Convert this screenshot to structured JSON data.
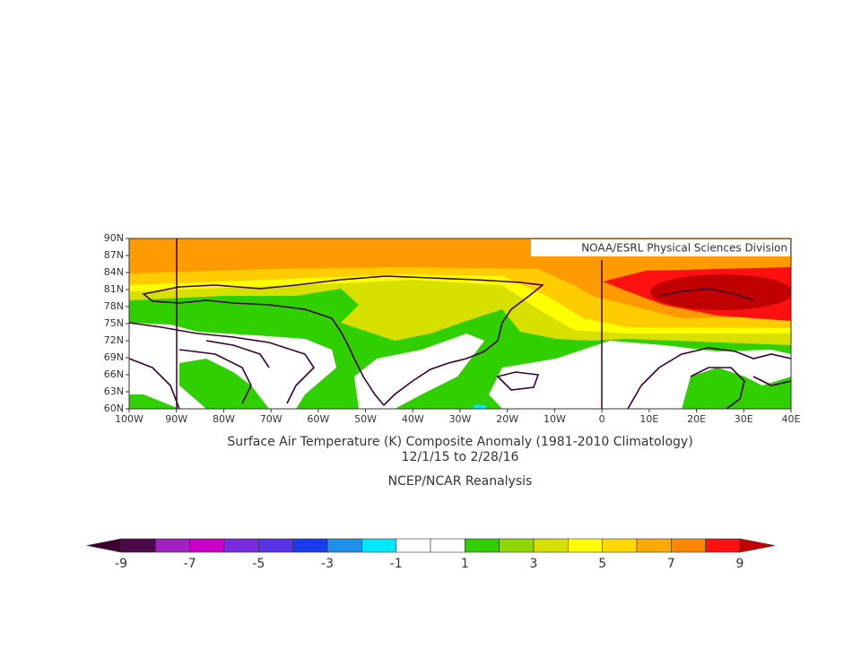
{
  "credit": "NOAA/ESRL Physical Sciences Division",
  "title": "Surface Air Temperature (K) Composite Anomaly (1981-2010 Climatology)",
  "dates": "12/1/15  to 2/28/16",
  "source": "NCEP/NCAR Reanalysis",
  "lat_labels": [
    "90N",
    "87N",
    "84N",
    "81N",
    "78N",
    "75N",
    "72N",
    "69N",
    "66N",
    "63N",
    "60N"
  ],
  "lon_labels": [
    "100W",
    "90W",
    "80W",
    "70W",
    "60W",
    "50W",
    "40W",
    "30W",
    "20W",
    "10W",
    "0",
    "10E",
    "20E",
    "30E",
    "40E"
  ],
  "colorbar": {
    "labels": [
      "-9",
      "-7",
      "-5",
      "-3",
      "-1",
      "1",
      "3",
      "5",
      "7",
      "9"
    ],
    "colors": [
      "#4a0a4a",
      "#a020c0",
      "#c800c8",
      "#7a2be0",
      "#5a32e8",
      "#1a3cf0",
      "#1e90e8",
      "#00e8ff",
      "#ffffff",
      "#ffffff",
      "#30d000",
      "#90d800",
      "#d8e000",
      "#ffff00",
      "#ffd800",
      "#ffaa00",
      "#ff8800",
      "#ff1010"
    ],
    "low_color": "#3c0030",
    "high_color": "#c00000"
  }
}
